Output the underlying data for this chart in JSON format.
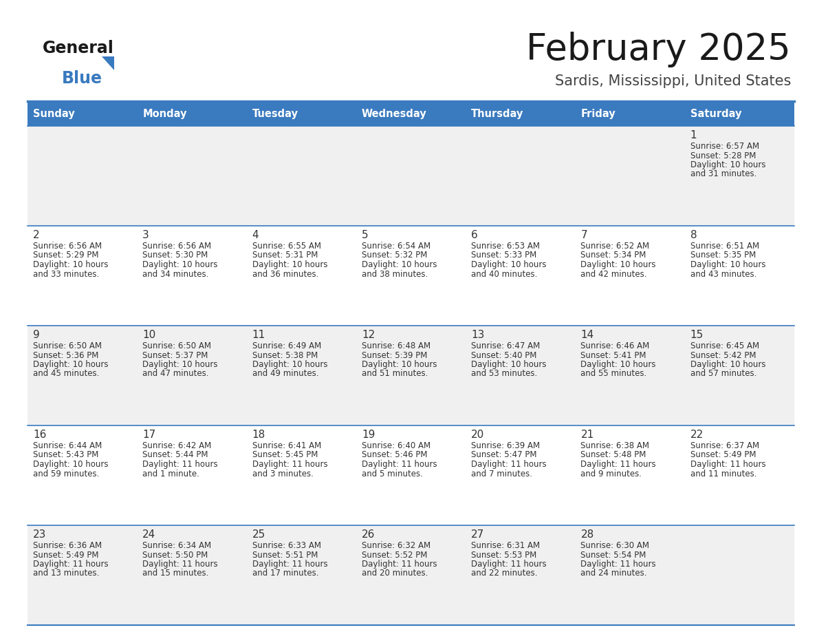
{
  "title": "February 2025",
  "subtitle": "Sardis, Mississippi, United States",
  "header_bg": "#3a7abf",
  "header_text": "#ffffff",
  "row_bg_odd": "#f0f0f0",
  "row_bg_even": "#ffffff",
  "separator_color": "#3a7abf",
  "day_headers": [
    "Sunday",
    "Monday",
    "Tuesday",
    "Wednesday",
    "Thursday",
    "Friday",
    "Saturday"
  ],
  "title_color": "#1a1a1a",
  "subtitle_color": "#444444",
  "cell_text_color": "#333333",
  "day_num_color": "#333333",
  "logo_general_color": "#1a1a1a",
  "logo_blue_color": "#3a7abf",
  "logo_triangle_color": "#3a7abf",
  "calendar": [
    [
      null,
      null,
      null,
      null,
      null,
      null,
      {
        "day": 1,
        "sunrise": "6:57 AM",
        "sunset": "5:28 PM",
        "daylight1": "10 hours",
        "daylight2": "and 31 minutes."
      }
    ],
    [
      {
        "day": 2,
        "sunrise": "6:56 AM",
        "sunset": "5:29 PM",
        "daylight1": "10 hours",
        "daylight2": "and 33 minutes."
      },
      {
        "day": 3,
        "sunrise": "6:56 AM",
        "sunset": "5:30 PM",
        "daylight1": "10 hours",
        "daylight2": "and 34 minutes."
      },
      {
        "day": 4,
        "sunrise": "6:55 AM",
        "sunset": "5:31 PM",
        "daylight1": "10 hours",
        "daylight2": "and 36 minutes."
      },
      {
        "day": 5,
        "sunrise": "6:54 AM",
        "sunset": "5:32 PM",
        "daylight1": "10 hours",
        "daylight2": "and 38 minutes."
      },
      {
        "day": 6,
        "sunrise": "6:53 AM",
        "sunset": "5:33 PM",
        "daylight1": "10 hours",
        "daylight2": "and 40 minutes."
      },
      {
        "day": 7,
        "sunrise": "6:52 AM",
        "sunset": "5:34 PM",
        "daylight1": "10 hours",
        "daylight2": "and 42 minutes."
      },
      {
        "day": 8,
        "sunrise": "6:51 AM",
        "sunset": "5:35 PM",
        "daylight1": "10 hours",
        "daylight2": "and 43 minutes."
      }
    ],
    [
      {
        "day": 9,
        "sunrise": "6:50 AM",
        "sunset": "5:36 PM",
        "daylight1": "10 hours",
        "daylight2": "and 45 minutes."
      },
      {
        "day": 10,
        "sunrise": "6:50 AM",
        "sunset": "5:37 PM",
        "daylight1": "10 hours",
        "daylight2": "and 47 minutes."
      },
      {
        "day": 11,
        "sunrise": "6:49 AM",
        "sunset": "5:38 PM",
        "daylight1": "10 hours",
        "daylight2": "and 49 minutes."
      },
      {
        "day": 12,
        "sunrise": "6:48 AM",
        "sunset": "5:39 PM",
        "daylight1": "10 hours",
        "daylight2": "and 51 minutes."
      },
      {
        "day": 13,
        "sunrise": "6:47 AM",
        "sunset": "5:40 PM",
        "daylight1": "10 hours",
        "daylight2": "and 53 minutes."
      },
      {
        "day": 14,
        "sunrise": "6:46 AM",
        "sunset": "5:41 PM",
        "daylight1": "10 hours",
        "daylight2": "and 55 minutes."
      },
      {
        "day": 15,
        "sunrise": "6:45 AM",
        "sunset": "5:42 PM",
        "daylight1": "10 hours",
        "daylight2": "and 57 minutes."
      }
    ],
    [
      {
        "day": 16,
        "sunrise": "6:44 AM",
        "sunset": "5:43 PM",
        "daylight1": "10 hours",
        "daylight2": "and 59 minutes."
      },
      {
        "day": 17,
        "sunrise": "6:42 AM",
        "sunset": "5:44 PM",
        "daylight1": "11 hours",
        "daylight2": "and 1 minute."
      },
      {
        "day": 18,
        "sunrise": "6:41 AM",
        "sunset": "5:45 PM",
        "daylight1": "11 hours",
        "daylight2": "and 3 minutes."
      },
      {
        "day": 19,
        "sunrise": "6:40 AM",
        "sunset": "5:46 PM",
        "daylight1": "11 hours",
        "daylight2": "and 5 minutes."
      },
      {
        "day": 20,
        "sunrise": "6:39 AM",
        "sunset": "5:47 PM",
        "daylight1": "11 hours",
        "daylight2": "and 7 minutes."
      },
      {
        "day": 21,
        "sunrise": "6:38 AM",
        "sunset": "5:48 PM",
        "daylight1": "11 hours",
        "daylight2": "and 9 minutes."
      },
      {
        "day": 22,
        "sunrise": "6:37 AM",
        "sunset": "5:49 PM",
        "daylight1": "11 hours",
        "daylight2": "and 11 minutes."
      }
    ],
    [
      {
        "day": 23,
        "sunrise": "6:36 AM",
        "sunset": "5:49 PM",
        "daylight1": "11 hours",
        "daylight2": "and 13 minutes."
      },
      {
        "day": 24,
        "sunrise": "6:34 AM",
        "sunset": "5:50 PM",
        "daylight1": "11 hours",
        "daylight2": "and 15 minutes."
      },
      {
        "day": 25,
        "sunrise": "6:33 AM",
        "sunset": "5:51 PM",
        "daylight1": "11 hours",
        "daylight2": "and 17 minutes."
      },
      {
        "day": 26,
        "sunrise": "6:32 AM",
        "sunset": "5:52 PM",
        "daylight1": "11 hours",
        "daylight2": "and 20 minutes."
      },
      {
        "day": 27,
        "sunrise": "6:31 AM",
        "sunset": "5:53 PM",
        "daylight1": "11 hours",
        "daylight2": "and 22 minutes."
      },
      {
        "day": 28,
        "sunrise": "6:30 AM",
        "sunset": "5:54 PM",
        "daylight1": "11 hours",
        "daylight2": "and 24 minutes."
      },
      null
    ]
  ]
}
